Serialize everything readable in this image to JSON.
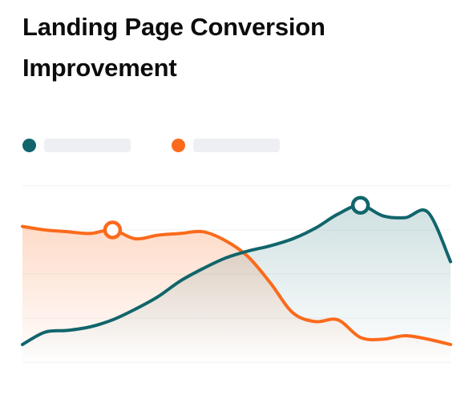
{
  "title": "Landing Page Conversion Improvement",
  "chart_data": {
    "type": "area",
    "title": "Landing Page Conversion Improvement",
    "xlabel": "",
    "ylabel": "",
    "x": [
      0,
      1,
      2,
      3,
      4,
      5,
      6,
      7,
      8,
      9,
      10,
      11,
      12,
      13,
      14,
      15,
      16,
      17,
      18,
      19
    ],
    "ylim": [
      0,
      100
    ],
    "grid": true,
    "legend_position": "top-left",
    "series": [
      {
        "name": "",
        "color": "#11656b",
        "values": [
          10,
          17,
          18,
          20,
          24,
          30,
          37,
          46,
          53,
          59,
          63,
          66,
          70,
          76,
          84,
          89,
          83,
          82,
          85,
          57
        ],
        "highlight_index": 15
      },
      {
        "name": "",
        "color": "#fb6a1b",
        "values": [
          77,
          75,
          74,
          73,
          75,
          70,
          72,
          73,
          74,
          69,
          60,
          45,
          28,
          23,
          24,
          14,
          13,
          15,
          13,
          10
        ],
        "highlight_index": 4
      }
    ]
  }
}
